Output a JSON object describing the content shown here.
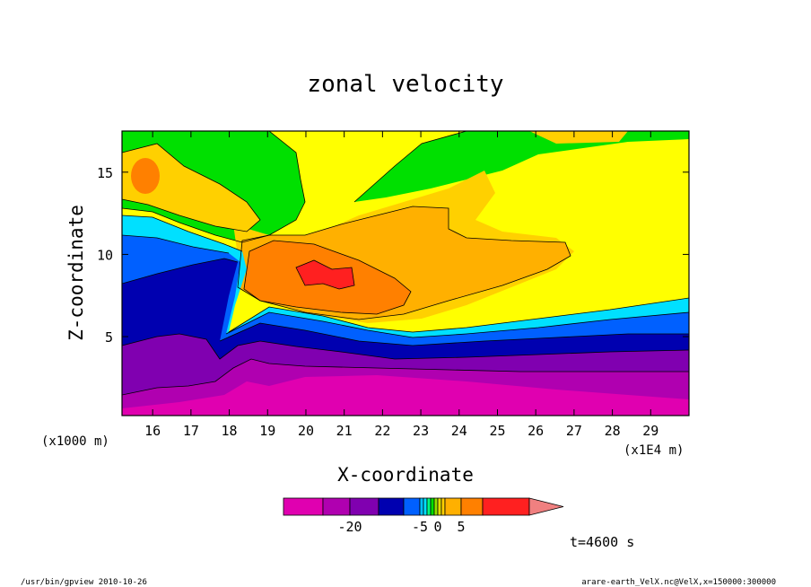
{
  "chart_data": {
    "type": "heatmap",
    "title": "zonal velocity",
    "xlabel": "X-coordinate",
    "ylabel": "Z-coordinate",
    "x_unit": "(x1E4 m)",
    "y_unit": "(x1000 m)",
    "x_ticks": [
      16,
      17,
      18,
      19,
      20,
      21,
      22,
      23,
      24,
      25,
      26,
      27,
      28,
      29
    ],
    "y_ticks": [
      5,
      10,
      15
    ],
    "xlim": [
      15.2,
      30.0
    ],
    "ylim": [
      0.2,
      17.5
    ],
    "colorbar": {
      "levels": [
        -30,
        -25,
        -20,
        -15,
        -10,
        -5,
        -4,
        -3,
        -2,
        -1,
        0,
        1,
        2,
        5,
        10,
        15
      ],
      "colors": [
        "#e000b0",
        "#b000b0",
        "#8000b0",
        "#0000b0",
        "#0060ff",
        "#00c0ff",
        "#00e0ff",
        "#00ff80",
        "#00e000",
        "#90e000",
        "#e0e000",
        "#ffd000",
        "#ffb000",
        "#ff8000",
        "#ff2020",
        "#f08080"
      ],
      "tick_labels": [
        {
          "value": -20,
          "label": "-20"
        },
        {
          "value": -5,
          "label": "-5"
        },
        {
          "value": 0,
          "label": "0"
        },
        {
          "value": 5,
          "label": "5"
        }
      ]
    },
    "time_label": "t=4600 s",
    "grid": false
  },
  "footer": {
    "left": "/usr/bin/gpview   2010-10-26",
    "right": "arare-earth_VelX.nc@VelX,x=150000:300000"
  }
}
